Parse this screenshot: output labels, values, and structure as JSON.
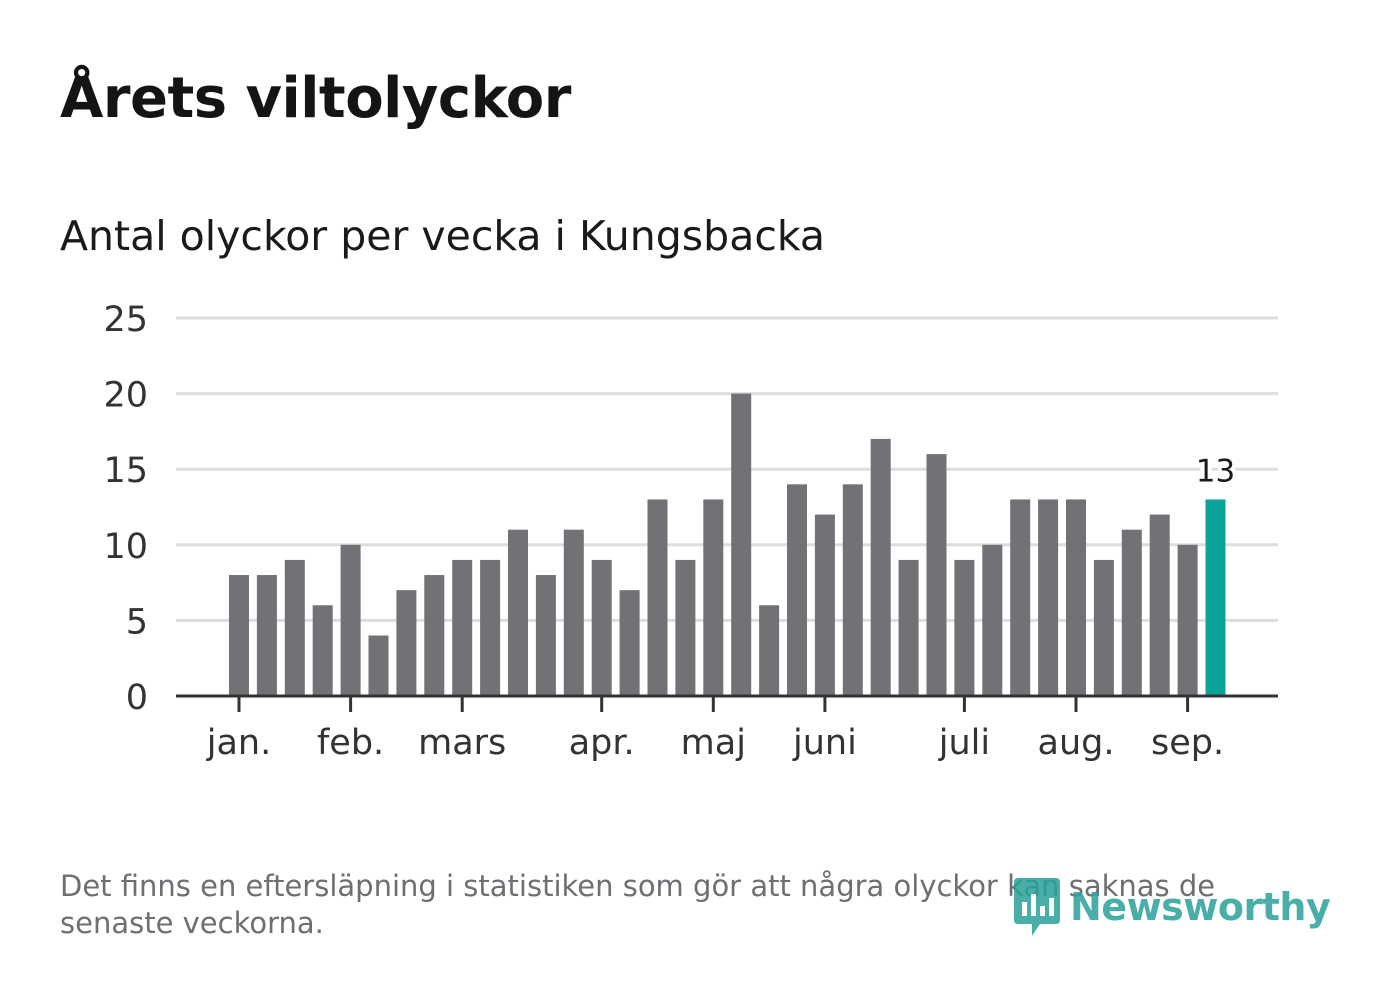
{
  "title": "Årets viltolyckor",
  "subtitle": "Antal olyckor per vecka i Kungsbacka",
  "footnote": "Det finns en eftersläpning i statistiken som gör att några olyckor kan saknas de senaste veckorna.",
  "logo": {
    "text": "Newsworthy",
    "icon": "newsworthy-logo-icon"
  },
  "colors": {
    "bar": "#717176",
    "highlight": "#0ba49a",
    "grid": "#dddddd",
    "axis": "#333333",
    "text": "#1a1a1a",
    "muted": "#6e6e73"
  },
  "chart_data": {
    "type": "bar",
    "title": "",
    "xlabel": "",
    "ylabel": "",
    "ylim": [
      0,
      25
    ],
    "yticks": [
      0,
      5,
      10,
      15,
      20,
      25
    ],
    "grid": true,
    "values": [
      8,
      8,
      9,
      6,
      10,
      4,
      7,
      8,
      9,
      9,
      11,
      8,
      11,
      9,
      7,
      13,
      9,
      13,
      20,
      6,
      14,
      12,
      14,
      17,
      9,
      16,
      9,
      10,
      13,
      13,
      13,
      9,
      11,
      12,
      10,
      13
    ],
    "highlight_index": 35,
    "highlight_label": "13",
    "month_labels": [
      {
        "label": "jan.",
        "x": 0.4
      },
      {
        "label": "feb.",
        "x": 4.4
      },
      {
        "label": "mars",
        "x": 8.4
      },
      {
        "label": "apr.",
        "x": 13.4
      },
      {
        "label": "maj",
        "x": 17.4
      },
      {
        "label": "juni",
        "x": 21.4
      },
      {
        "label": "juli",
        "x": 26.4
      },
      {
        "label": "aug.",
        "x": 30.4
      },
      {
        "label": "sep.",
        "x": 34.4
      }
    ]
  }
}
